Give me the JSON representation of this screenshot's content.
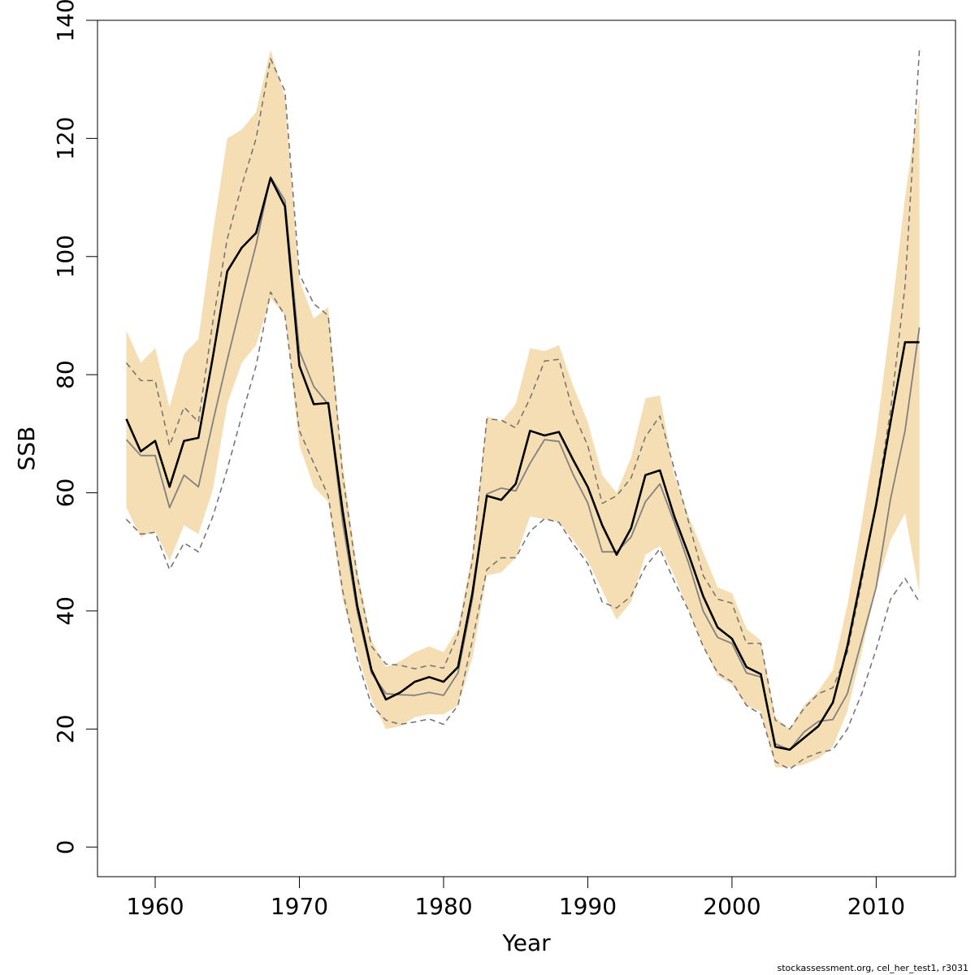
{
  "chart_data": {
    "type": "line",
    "xlabel": "Year",
    "ylabel": "SSB",
    "xlim": [
      1956,
      2015.5
    ],
    "ylim": [
      -5,
      140
    ],
    "xticks": [
      1960,
      1970,
      1980,
      1990,
      2000,
      2010
    ],
    "yticks": [
      0,
      20,
      40,
      60,
      80,
      100,
      120,
      140
    ],
    "grid": false,
    "legend": "none",
    "colors": {
      "band": "#f5deb3",
      "main": "#000000",
      "secondary": "#808080",
      "dashed": "#707070"
    },
    "x": [
      1958,
      1959,
      1960,
      1961,
      1962,
      1963,
      1964,
      1965,
      1966,
      1967,
      1968,
      1969,
      1970,
      1971,
      1972,
      1973,
      1974,
      1975,
      1976,
      1977,
      1978,
      1979,
      1980,
      1981,
      1982,
      1983,
      1984,
      1985,
      1986,
      1987,
      1988,
      1989,
      1990,
      1991,
      1992,
      1993,
      1994,
      1995,
      1996,
      1997,
      1998,
      1999,
      2000,
      2001,
      2002,
      2003,
      2004,
      2005,
      2006,
      2007,
      2008,
      2009,
      2010,
      2011,
      2012,
      2013
    ],
    "band_upper": [
      87.5,
      82,
      84.5,
      74.5,
      83.5,
      86,
      104,
      120,
      121.5,
      124.5,
      135,
      127,
      96,
      89.5,
      91.5,
      65,
      47,
      35,
      30.5,
      31.5,
      33,
      34,
      33,
      37,
      50,
      73,
      72,
      75,
      84.5,
      84,
      85,
      78,
      72,
      63,
      60,
      66,
      76,
      76.5,
      63,
      56,
      50,
      44,
      43,
      37,
      35,
      22,
      20,
      24,
      26.5,
      30,
      41,
      55,
      70,
      89,
      110,
      127
    ],
    "band_lower": [
      57.5,
      52.5,
      53.5,
      48.5,
      54.5,
      53,
      60.5,
      75,
      82,
      85,
      93,
      90,
      68,
      61,
      58.5,
      42,
      33,
      25,
      20,
      20.5,
      22,
      22.5,
      22.5,
      24,
      32,
      46,
      46.5,
      49,
      56,
      55.5,
      55,
      52,
      48.5,
      43.5,
      38.5,
      41.5,
      49.5,
      51,
      46,
      40,
      34,
      29,
      27.5,
      24,
      23,
      13.5,
      13.5,
      14,
      15,
      17,
      23,
      33,
      44,
      52,
      56.5,
      43
    ],
    "series": [
      {
        "values": [
          72.5,
          67,
          68.8,
          61,
          68.8,
          69.3,
          83,
          97.5,
          101.5,
          104,
          113.3,
          108.5,
          81.5,
          75,
          75.2,
          57,
          41,
          30,
          25,
          26.2,
          28,
          28.8,
          28,
          30.5,
          43,
          59.5,
          58.8,
          61.5,
          70.5,
          69.7,
          70.3,
          65.5,
          61,
          54.5,
          49.5,
          54,
          63,
          63.8,
          56,
          49.5,
          42.5,
          37.2,
          35.3,
          30.5,
          29.3,
          17,
          16.5,
          18.5,
          20.5,
          24.5,
          34,
          46,
          58,
          72,
          85.5,
          85.5
        ]
      },
      {
        "values": [
          69,
          66.3,
          66.3,
          57.5,
          63,
          61,
          72,
          82.5,
          92.5,
          102,
          113.5,
          109.5,
          84,
          78,
          75,
          55,
          40,
          29.5,
          26,
          25.8,
          25.7,
          26.2,
          25.7,
          29.5,
          42,
          59.8,
          60.8,
          60.3,
          65,
          69,
          68.7,
          63,
          58.3,
          50,
          50,
          52.5,
          58.5,
          61.5,
          55,
          48,
          40,
          35.5,
          34.5,
          29.5,
          28.8,
          17.5,
          16.5,
          19.5,
          21.3,
          21.6,
          26,
          35,
          44,
          59,
          70.5,
          88
        ]
      },
      {
        "values": [
          82,
          79,
          79,
          68,
          74.5,
          72,
          89,
          103,
          112,
          120,
          133.5,
          128,
          97,
          92,
          90,
          63,
          46,
          34,
          31,
          30.8,
          30.2,
          30.8,
          30.3,
          36,
          48.5,
          72.5,
          72.3,
          71,
          76,
          82.3,
          82.6,
          73.5,
          68,
          58.2,
          59.5,
          62.5,
          69.5,
          73,
          64,
          55,
          46,
          42,
          41.3,
          34.5,
          34.5,
          21.5,
          20,
          23.5,
          26,
          27,
          33,
          45,
          58.5,
          74,
          95,
          135
        ]
      },
      {
        "values": [
          55.5,
          53,
          53.3,
          47,
          51.5,
          50,
          56,
          64,
          73,
          81.5,
          94,
          90,
          70.5,
          65,
          59.5,
          43.5,
          32,
          24,
          21.5,
          20.8,
          21.2,
          21.7,
          20.8,
          24,
          35,
          47,
          49,
          49,
          53.5,
          55.6,
          55,
          51.3,
          48,
          41.5,
          40.5,
          42.5,
          47.5,
          50.5,
          45,
          40,
          34,
          29.5,
          28,
          24,
          22.5,
          14.5,
          13.2,
          15,
          16,
          16.5,
          20,
          26,
          33.5,
          42,
          45.5,
          41.5
        ]
      }
    ]
  },
  "footer": {
    "credit": "stockassessment.org, cel_her_test1, r3031"
  }
}
